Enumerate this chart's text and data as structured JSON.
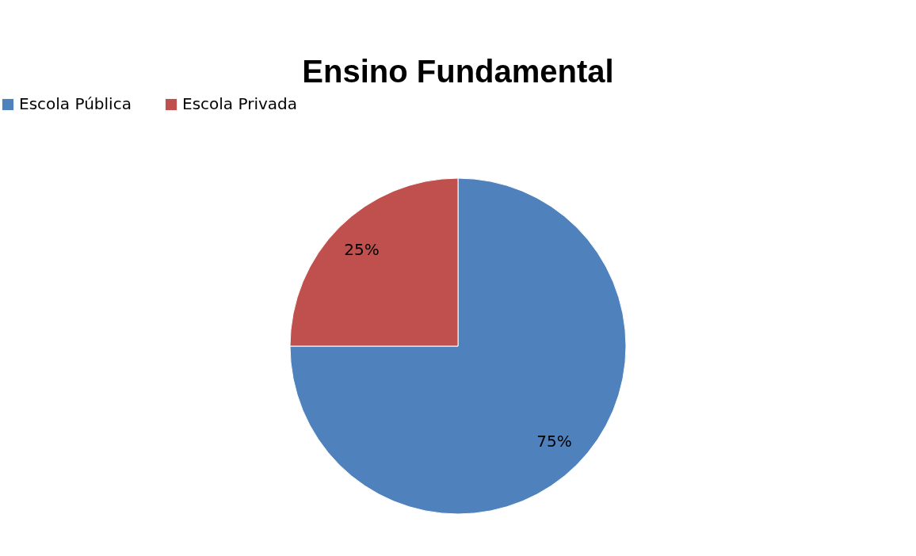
{
  "chart_data": {
    "type": "pie",
    "title": "Ensino Fundamental",
    "categories": [
      "Escola Pública",
      "Escola Privada"
    ],
    "values": [
      75,
      25
    ],
    "colors": [
      "#4f81bd",
      "#c0504d"
    ],
    "value_labels": [
      "75%",
      "25%"
    ],
    "legend": "top"
  }
}
